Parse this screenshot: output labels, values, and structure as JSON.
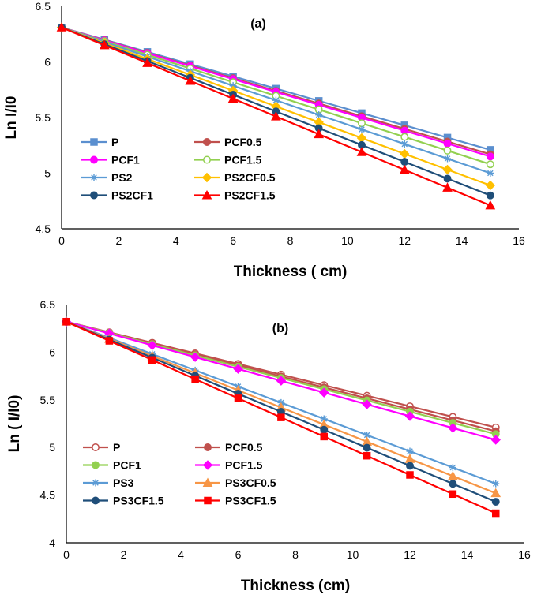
{
  "chart_data": [
    {
      "type": "line",
      "panel_label": "(a)",
      "xlabel": "Thickness ( cm)",
      "ylabel": "Ln I/I0",
      "xlim": [
        0,
        16
      ],
      "ylim": [
        4.5,
        6.5
      ],
      "xticks": [
        "0",
        "2",
        "4",
        "6",
        "8",
        "10",
        "12",
        "14",
        "16"
      ],
      "yticks": [
        "4.5",
        "5",
        "5.5",
        "6",
        "6.5"
      ],
      "x": [
        0,
        1.5,
        3,
        4.5,
        6,
        7.5,
        9,
        10.5,
        12,
        13.5,
        15
      ],
      "series": [
        {
          "name": "P",
          "color": "#5b8fcf",
          "marker": "square",
          "filled": true,
          "y0": 6.31,
          "y15": 5.21
        },
        {
          "name": "PCF0.5",
          "color": "#c0504d",
          "marker": "circle",
          "filled": true,
          "y0": 6.31,
          "y15": 5.17
        },
        {
          "name": "PCF1",
          "color": "#ff00ff",
          "marker": "circle",
          "filled": true,
          "y0": 6.31,
          "y15": 5.15
        },
        {
          "name": "PCF1.5",
          "color": "#92d050",
          "marker": "circle",
          "filled": false,
          "y0": 6.31,
          "y15": 5.08
        },
        {
          "name": "PS2",
          "color": "#5b9bd5",
          "marker": "star",
          "filled": false,
          "y0": 6.31,
          "y15": 5.0
        },
        {
          "name": "PS2CF0.5",
          "color": "#ffc000",
          "marker": "diamond",
          "filled": true,
          "y0": 6.31,
          "y15": 4.89
        },
        {
          "name": "PS2CF1",
          "color": "#1f4e79",
          "marker": "circle",
          "filled": true,
          "y0": 6.31,
          "y15": 4.8
        },
        {
          "name": "PS2CF1.5",
          "color": "#ff0000",
          "marker": "triangle",
          "filled": true,
          "y0": 6.31,
          "y15": 4.71
        }
      ]
    },
    {
      "type": "line",
      "panel_label": "(b)",
      "xlabel": "Thickness (cm)",
      "ylabel": "Ln ( I/I0)",
      "xlim": [
        0,
        16
      ],
      "ylim": [
        4,
        6.5
      ],
      "xticks": [
        "0",
        "2",
        "4",
        "6",
        "8",
        "10",
        "12",
        "14",
        "16"
      ],
      "yticks": [
        "4",
        "4.5",
        "5",
        "5.5",
        "6",
        "6.5"
      ],
      "x": [
        0,
        1.5,
        3,
        4.5,
        6,
        7.5,
        9,
        10.5,
        12,
        13.5,
        15
      ],
      "series": [
        {
          "name": "P",
          "color": "#c0504d",
          "marker": "circle",
          "filled": false,
          "y0": 6.32,
          "y15": 5.21
        },
        {
          "name": "PCF0.5",
          "color": "#c0504d",
          "marker": "circle",
          "filled": true,
          "y0": 6.32,
          "y15": 5.17
        },
        {
          "name": "PCF1",
          "color": "#92d050",
          "marker": "circle",
          "filled": true,
          "y0": 6.32,
          "y15": 5.14
        },
        {
          "name": "PCF1.5",
          "color": "#ff00ff",
          "marker": "diamond",
          "filled": true,
          "y0": 6.32,
          "y15": 5.08
        },
        {
          "name": "PS3",
          "color": "#5b9bd5",
          "marker": "star",
          "filled": false,
          "y0": 6.32,
          "y15": 4.62
        },
        {
          "name": "PS3CF0.5",
          "color": "#f79646",
          "marker": "triangle",
          "filled": true,
          "y0": 6.32,
          "y15": 4.52
        },
        {
          "name": "PS3CF1.5",
          "color": "#1f4e79",
          "marker": "circle",
          "filled": true,
          "y0": 6.32,
          "y15": 4.43
        },
        {
          "name": "PS3CF1.5",
          "color": "#ff0000",
          "marker": "square",
          "filled": true,
          "y0": 6.32,
          "y15": 4.31
        }
      ]
    }
  ]
}
